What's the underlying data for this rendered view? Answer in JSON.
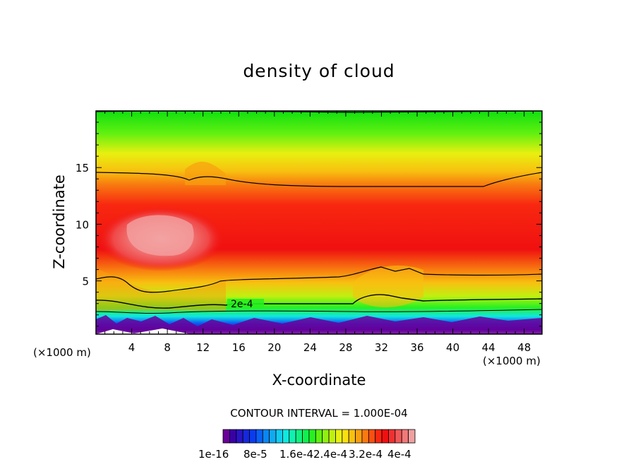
{
  "chart_data": {
    "type": "contour",
    "title": "density of cloud",
    "xlabel": "X-coordinate",
    "ylabel": "Z-coordinate",
    "x_unit": "(×1000 m)",
    "z_unit": "(×1000 m)",
    "x_range": [
      0,
      50
    ],
    "z_range": [
      0.3,
      20
    ],
    "x_ticks": [
      4,
      8,
      12,
      16,
      20,
      24,
      28,
      32,
      36,
      40,
      44,
      48
    ],
    "y_ticks": [
      5,
      10,
      15
    ],
    "contour_interval_text": "CONTOUR INTERVAL = 1.000E-04",
    "contour_label": "2e-4",
    "colorbar": {
      "colors": [
        "#6a009a",
        "#3a00a8",
        "#2a14c4",
        "#1628dc",
        "#0a3cf0",
        "#0a60f4",
        "#0a86f2",
        "#10aaf0",
        "#10ccf0",
        "#10e8e0",
        "#10f0b0",
        "#10f080",
        "#10f050",
        "#28f020",
        "#60f010",
        "#90f010",
        "#c0f010",
        "#e8f010",
        "#f8e010",
        "#f8c010",
        "#f8a010",
        "#f87a10",
        "#f85010",
        "#f82810",
        "#f01010",
        "#f03030",
        "#f05858",
        "#f07878",
        "#f0a0a0"
      ],
      "labels": [
        "1e-16",
        "8e-5",
        "1.6e-4",
        "2.4e-4",
        "3.2e-4",
        "4e-4"
      ]
    }
  }
}
